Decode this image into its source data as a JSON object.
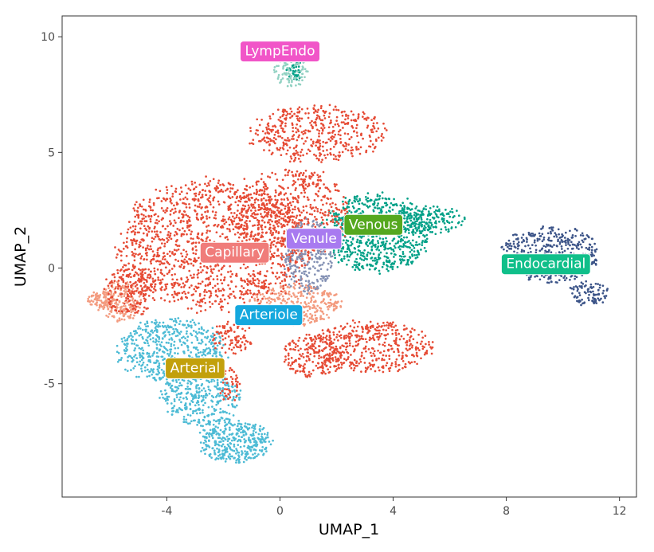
{
  "chart_data": {
    "type": "scatter",
    "title": "",
    "xlabel": "UMAP_1",
    "ylabel": "UMAP_2",
    "xlim": [
      -7.7,
      12.6
    ],
    "ylim": [
      -9.9,
      10.9
    ],
    "x_ticks": [
      -4,
      0,
      4,
      8,
      12
    ],
    "y_ticks": [
      -5,
      0,
      5,
      10
    ],
    "x_tick_labels": [
      "-4",
      "0",
      "4",
      "8",
      "12"
    ],
    "y_tick_labels": [
      "-5",
      "0",
      "5",
      "10"
    ],
    "grid": false,
    "legend": "none",
    "clusters": [
      {
        "name": "Capillary",
        "color": "#E64B35",
        "label_position": [
          -1.6,
          0.7
        ],
        "regions": [
          {
            "cx": -2.3,
            "cy": 1.0,
            "rx": 3.4,
            "ry": 2.8,
            "w": 16
          },
          {
            "cx": 0.5,
            "cy": 2.3,
            "rx": 2.0,
            "ry": 2.0,
            "w": 6
          },
          {
            "cx": 1.3,
            "cy": 5.8,
            "rx": 2.4,
            "ry": 1.2,
            "w": 5
          },
          {
            "cx": -5.3,
            "cy": -1.0,
            "rx": 0.9,
            "ry": 1.1,
            "w": 2
          },
          {
            "cx": 3.2,
            "cy": -3.4,
            "rx": 2.2,
            "ry": 1.1,
            "w": 5
          },
          {
            "cx": 1.2,
            "cy": -3.8,
            "rx": 1.1,
            "ry": 0.9,
            "w": 2
          },
          {
            "cx": -1.7,
            "cy": -3.0,
            "rx": 0.7,
            "ry": 0.7,
            "w": 1
          },
          {
            "cx": -1.8,
            "cy": -5.0,
            "rx": 0.4,
            "ry": 0.8,
            "w": 0.5
          }
        ]
      },
      {
        "name": "Arteriole",
        "color": "#F39B7F",
        "label_position": [
          -0.4,
          -2.0
        ],
        "regions": [
          {
            "cx": 0.5,
            "cy": -1.6,
            "rx": 1.6,
            "ry": 0.9,
            "w": 4
          },
          {
            "cx": -6.3,
            "cy": -1.4,
            "rx": 0.5,
            "ry": 0.4,
            "w": 1
          },
          {
            "cx": -5.6,
            "cy": -1.4,
            "rx": 0.7,
            "ry": 0.9,
            "w": 2
          }
        ]
      },
      {
        "name": "Arterial",
        "color": "#4DBBD5",
        "label_position": [
          -3.0,
          -4.3
        ],
        "regions": [
          {
            "cx": -3.8,
            "cy": -3.6,
            "rx": 1.9,
            "ry": 1.4,
            "w": 6
          },
          {
            "cx": -1.6,
            "cy": -7.5,
            "rx": 1.3,
            "ry": 0.9,
            "w": 4
          },
          {
            "cx": -2.8,
            "cy": -5.6,
            "rx": 1.4,
            "ry": 1.2,
            "w": 4
          }
        ]
      },
      {
        "name": "Venule",
        "color": "#8491B4",
        "label_position": [
          1.2,
          1.3
        ],
        "regions": [
          {
            "cx": 1.0,
            "cy": 0.5,
            "rx": 0.9,
            "ry": 1.6,
            "w": 3
          }
        ]
      },
      {
        "name": "Venous",
        "color": "#00A087",
        "label_position": [
          3.3,
          1.9
        ],
        "regions": [
          {
            "cx": 3.4,
            "cy": 1.5,
            "rx": 1.9,
            "ry": 1.7,
            "w": 8
          },
          {
            "cx": 5.2,
            "cy": 2.1,
            "rx": 1.3,
            "ry": 0.6,
            "w": 2
          },
          {
            "cx": 0.5,
            "cy": 8.6,
            "rx": 0.3,
            "ry": 0.5,
            "w": 0.5
          }
        ]
      },
      {
        "name": "Endocardial",
        "color": "#3C5488",
        "label_position": [
          9.4,
          0.2
        ],
        "regions": [
          {
            "cx": 9.6,
            "cy": 0.6,
            "rx": 1.7,
            "ry": 1.2,
            "w": 5
          },
          {
            "cx": 10.9,
            "cy": -1.1,
            "rx": 0.7,
            "ry": 0.5,
            "w": 1
          }
        ]
      },
      {
        "name": "LympEndo",
        "color": "#91D1C2",
        "label_position": [
          0.0,
          9.4
        ],
        "regions": [
          {
            "cx": 0.4,
            "cy": 8.5,
            "rx": 0.6,
            "ry": 0.7,
            "w": 1
          }
        ]
      }
    ],
    "label_colors": {
      "LympEndo": "#F155C8",
      "Capillary": "#F07C7A",
      "Venule": "#A87AF0",
      "Venous": "#55A81F",
      "Arteriole": "#14A8DE",
      "Arterial": "#C2A00C",
      "Endocardial": "#10BF8A"
    }
  }
}
